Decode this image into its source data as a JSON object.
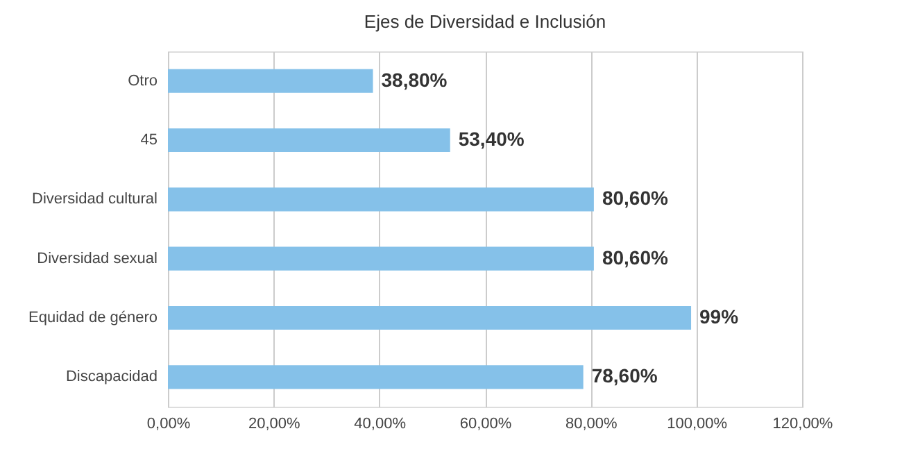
{
  "chart_data": {
    "type": "bar",
    "orientation": "horizontal",
    "title": "Ejes de Diversidad e Inclusión",
    "categories": [
      "Otro",
      "45",
      "Diversidad cultural",
      "Diversidad sexual",
      "Equidad de género",
      "Discapacidad"
    ],
    "values": [
      38.8,
      53.4,
      80.6,
      80.6,
      99,
      78.6
    ],
    "value_labels": [
      "38,80%",
      "53,40%",
      "80,60%",
      "80,60%",
      "99%",
      "78,60%"
    ],
    "color": "#85c1e9",
    "xlim": [
      0,
      120
    ],
    "xticks": [
      {
        "value": 0,
        "label": "0,00%"
      },
      {
        "value": 20,
        "label": "20,00%"
      },
      {
        "value": 40,
        "label": "40,00%"
      },
      {
        "value": 60,
        "label": "60,00%"
      },
      {
        "value": 80,
        "label": "80,00%"
      },
      {
        "value": 100,
        "label": "100,00%"
      },
      {
        "value": 120,
        "label": "120,00%"
      }
    ],
    "grid": "x"
  }
}
